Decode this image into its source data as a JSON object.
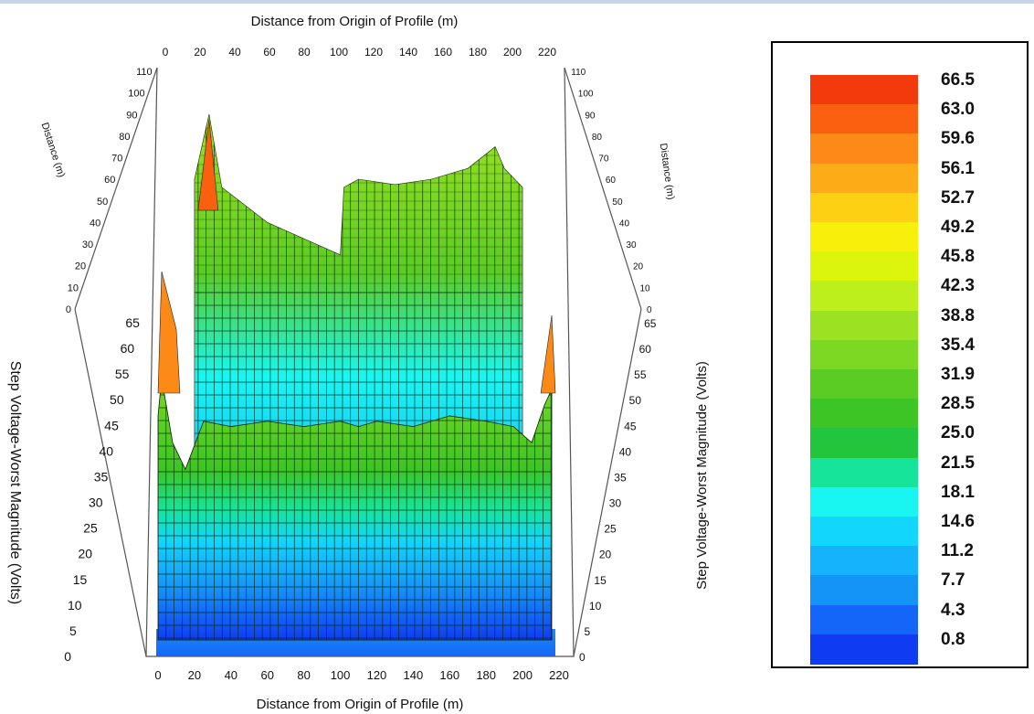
{
  "chart_data": {
    "type": "surface",
    "x_axis": {
      "title": "Distance from Origin of Profile (m)",
      "range": [
        0,
        220
      ],
      "ticks": [
        "0",
        "20",
        "40",
        "60",
        "80",
        "100",
        "120",
        "140",
        "160",
        "180",
        "200",
        "220"
      ]
    },
    "y_axis": {
      "title_left": "Distance (m)",
      "title_right": "Distance (m)",
      "range": [
        0,
        110
      ],
      "ticks": [
        "0",
        "10",
        "20",
        "30",
        "40",
        "50",
        "60",
        "70",
        "80",
        "90",
        "100",
        "110"
      ]
    },
    "z_axis": {
      "title_left": "Step Voltage-Worst Magnitude (Volts)",
      "title_right": "Step Voltage-Worst Magnitude (Volts)",
      "range": [
        0,
        65
      ],
      "ticks": [
        "0",
        "5",
        "10",
        "15",
        "20",
        "25",
        "30",
        "35",
        "40",
        "45",
        "50",
        "55",
        "60",
        "65"
      ]
    },
    "front_profile": {
      "x": [
        0,
        2,
        8,
        15,
        25,
        40,
        60,
        80,
        100,
        110,
        120,
        140,
        160,
        180,
        195,
        205,
        212,
        216
      ],
      "z": [
        45,
        52,
        40,
        35,
        44,
        43,
        44,
        43,
        44,
        43,
        44,
        43,
        45,
        44,
        43,
        40,
        47,
        50
      ]
    },
    "back_profile": {
      "x": [
        20,
        28,
        35,
        60,
        100,
        102,
        110,
        130,
        150,
        170,
        185,
        190,
        200
      ],
      "z": [
        48,
        72,
        45,
        32,
        20,
        45,
        48,
        46,
        48,
        52,
        60,
        52,
        45
      ]
    },
    "legend": {
      "labels": [
        "66.5",
        "63.0",
        "59.6",
        "56.1",
        "52.7",
        "49.2",
        "45.8",
        "42.3",
        "38.8",
        "35.4",
        "31.9",
        "28.5",
        "25.0",
        "21.5",
        "18.1",
        "14.6",
        "11.2",
        "7.7",
        "4.3",
        "0.8"
      ],
      "colors": [
        "#f23a0d",
        "#fb5f10",
        "#fd8a16",
        "#fdab16",
        "#fdd013",
        "#f6f00b",
        "#dcf60b",
        "#bcef1b",
        "#9de222",
        "#7bd823",
        "#5bcc23",
        "#3cc524",
        "#22c53b",
        "#16e49a",
        "#19f6f2",
        "#12d6fb",
        "#14b3fb",
        "#1594f8",
        "#1466f8",
        "#0f3cf2"
      ]
    }
  }
}
